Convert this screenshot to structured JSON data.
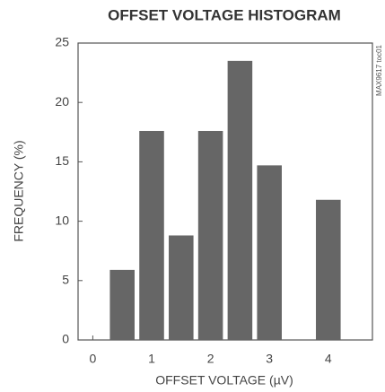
{
  "chart_data": {
    "type": "bar",
    "title": "OFFSET VOLTAGE HISTOGRAM",
    "xlabel": "OFFSET VOLTAGE (µV)",
    "ylabel": "FREQUENCY (%)",
    "annotation": "MAX9617 toc01",
    "x": [
      0.5,
      1,
      1.5,
      2,
      2.5,
      3,
      4
    ],
    "values": [
      5.9,
      17.6,
      8.8,
      17.6,
      23.5,
      14.7,
      11.8
    ],
    "color": "#666666",
    "xlim": [
      -0.25,
      4.75
    ],
    "xticks": [
      0,
      1,
      2,
      3,
      4
    ],
    "ylim": [
      0,
      25
    ],
    "yticks": [
      0,
      5,
      10,
      15,
      20,
      25
    ],
    "grid": false
  }
}
